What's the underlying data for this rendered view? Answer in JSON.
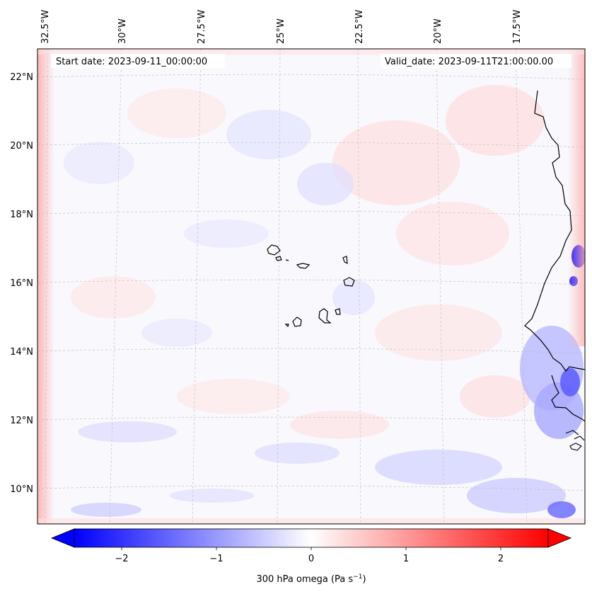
{
  "header": {
    "start_date": "Start date: 2023-09-11_00:00:00",
    "valid_date": "Valid_date: 2023-09-11T21:00:00.00"
  },
  "map": {
    "longitude_labels": [
      "32.5°W",
      "30°W",
      "27.5°W",
      "25°W",
      "22.5°W",
      "20°W",
      "17.5°W"
    ],
    "latitude_labels": [
      "22°N",
      "20°N",
      "18°N",
      "16°N",
      "14°N",
      "12°N",
      "10°N"
    ],
    "gridlines": "dashed",
    "coastline_color": "#000000"
  },
  "colorbar": {
    "ticks": [
      "−2",
      "−1",
      "0",
      "1",
      "2"
    ],
    "label_main": "300 hPa omega (Pa s",
    "label_sup": "−1",
    "label_end": ")",
    "colormap": "bwr",
    "range": [
      -2.5,
      2.5
    ],
    "low_color": "#0000ff",
    "mid_color": "#ffffff",
    "high_color": "#ff0000"
  }
}
